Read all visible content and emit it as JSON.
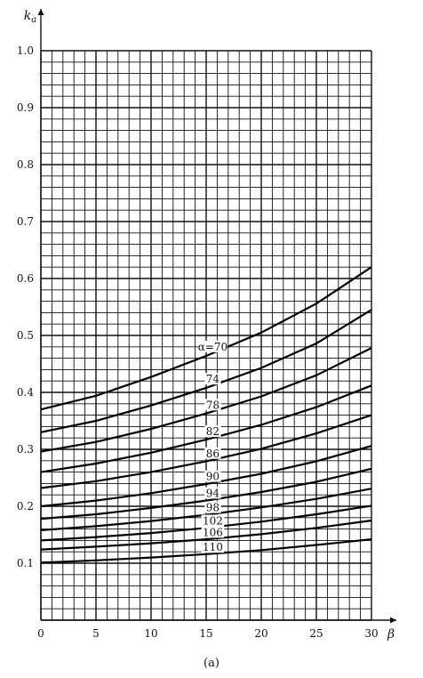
{
  "chart_data": {
    "type": "line",
    "xlabel": "β",
    "ylabel": "k_a",
    "xlim": [
      0,
      30
    ],
    "ylim": [
      0,
      1.0
    ],
    "x_ticks": [
      "0",
      "5",
      "10",
      "15",
      "20",
      "25",
      "30"
    ],
    "y_ticks": [
      "0.1",
      "0.2",
      "0.3",
      "0.4",
      "0.5",
      "0.6",
      "0.7",
      "0.8",
      "0.9",
      "1.0"
    ],
    "grid": true,
    "caption": "(a)",
    "x": [
      0,
      5,
      10,
      15,
      20,
      25,
      30
    ],
    "series": [
      {
        "name": "α=70",
        "values": [
          0.37,
          0.394,
          0.427,
          0.464,
          0.505,
          0.556,
          0.62
        ]
      },
      {
        "name": "74",
        "values": [
          0.33,
          0.35,
          0.377,
          0.408,
          0.443,
          0.486,
          0.545
        ]
      },
      {
        "name": "78",
        "values": [
          0.296,
          0.313,
          0.336,
          0.363,
          0.393,
          0.43,
          0.478
        ]
      },
      {
        "name": "82",
        "values": [
          0.26,
          0.275,
          0.294,
          0.317,
          0.343,
          0.374,
          0.412
        ]
      },
      {
        "name": "86",
        "values": [
          0.232,
          0.244,
          0.26,
          0.279,
          0.301,
          0.328,
          0.36
        ]
      },
      {
        "name": "90",
        "values": [
          0.2,
          0.21,
          0.223,
          0.239,
          0.257,
          0.279,
          0.306
        ]
      },
      {
        "name": "94",
        "values": [
          0.178,
          0.186,
          0.197,
          0.21,
          0.225,
          0.243,
          0.266
        ]
      },
      {
        "name": "98",
        "values": [
          0.158,
          0.165,
          0.174,
          0.185,
          0.198,
          0.213,
          0.231
        ]
      },
      {
        "name": "102",
        "values": [
          0.14,
          0.146,
          0.153,
          0.162,
          0.173,
          0.186,
          0.201
        ]
      },
      {
        "name": "106",
        "values": [
          0.124,
          0.129,
          0.135,
          0.142,
          0.151,
          0.162,
          0.175
        ]
      },
      {
        "name": "110",
        "values": [
          0.101,
          0.105,
          0.11,
          0.116,
          0.123,
          0.132,
          0.142
        ]
      }
    ]
  }
}
